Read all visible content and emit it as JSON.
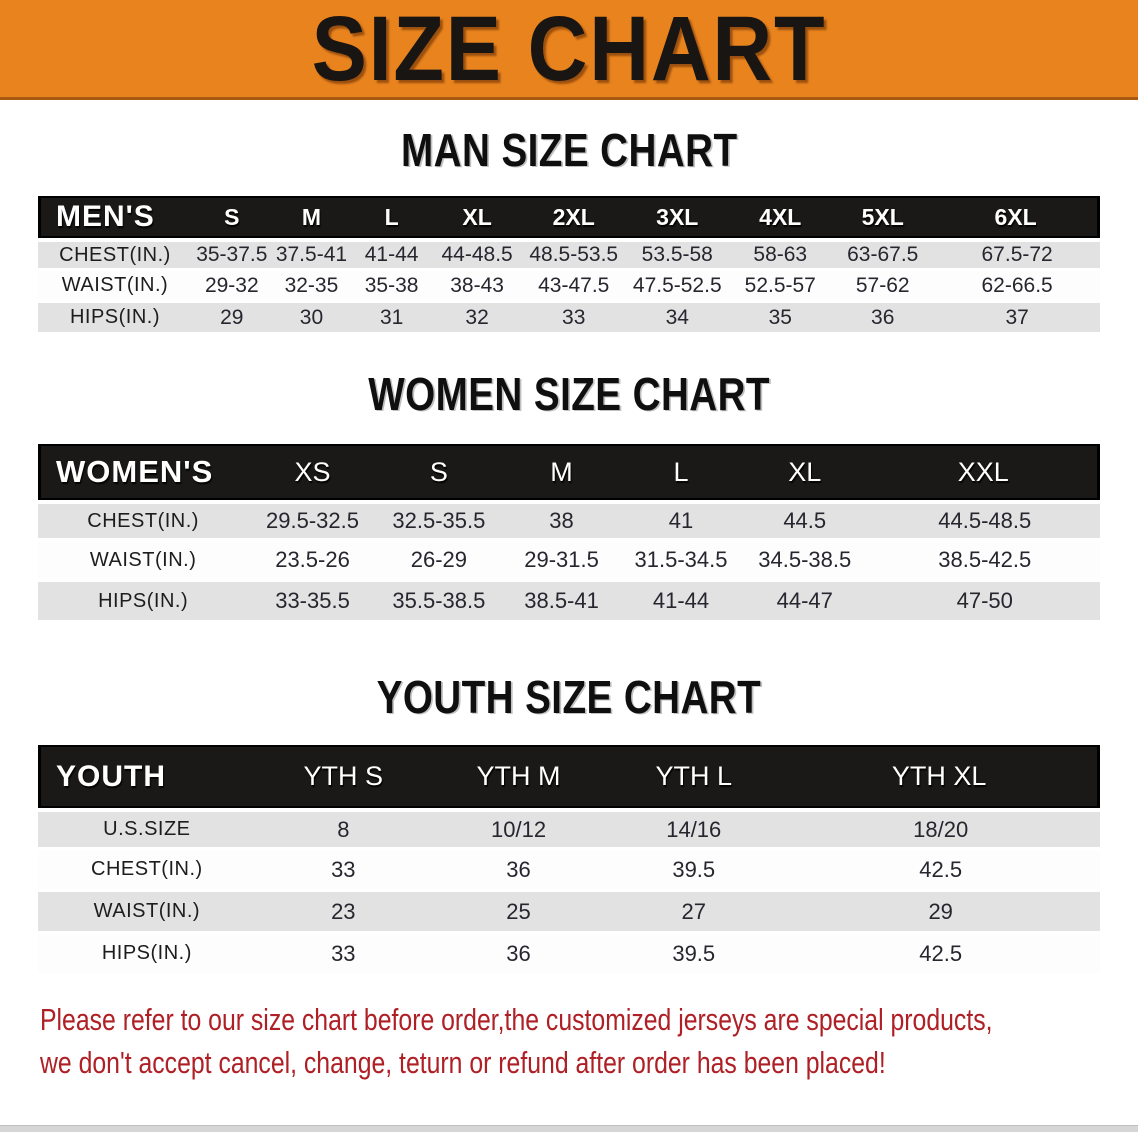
{
  "banner": {
    "title": "SIZE CHART",
    "bg_color": "#E8831E"
  },
  "sections": {
    "men": {
      "title": "MAN SIZE CHART",
      "group_label": "MEN'S",
      "columns": [
        "S",
        "M",
        "L",
        "XL",
        "2XL",
        "3XL",
        "4XL",
        "5XL",
        "6XL"
      ],
      "rows": [
        {
          "label": "CHEST(IN.)",
          "values": [
            "35-37.5",
            "37.5-41",
            "41-44",
            "44-48.5",
            "48.5-53.5",
            "53.5-58",
            "58-63",
            "63-67.5",
            "67.5-72"
          ]
        },
        {
          "label": "WAIST(IN.)",
          "values": [
            "29-32",
            "32-35",
            "35-38",
            "38-43",
            "43-47.5",
            "47.5-52.5",
            "52.5-57",
            "57-62",
            "62-66.5"
          ]
        },
        {
          "label": "HIPS(IN.)",
          "values": [
            "29",
            "30",
            "31",
            "32",
            "33",
            "34",
            "35",
            "36",
            "37"
          ]
        }
      ]
    },
    "women": {
      "title": "WOMEN SIZE CHART",
      "group_label": "WOMEN'S",
      "columns": [
        "XS",
        "S",
        "M",
        "L",
        "XL",
        "XXL"
      ],
      "rows": [
        {
          "label": "CHEST(IN.)",
          "values": [
            "29.5-32.5",
            "32.5-35.5",
            "38",
            "41",
            "44.5",
            "44.5-48.5"
          ]
        },
        {
          "label": "WAIST(IN.)",
          "values": [
            "23.5-26",
            "26-29",
            "29-31.5",
            "31.5-34.5",
            "34.5-38.5",
            "38.5-42.5"
          ]
        },
        {
          "label": "HIPS(IN.)",
          "values": [
            "33-35.5",
            "35.5-38.5",
            "38.5-41",
            "41-44",
            "44-47",
            "47-50"
          ]
        }
      ]
    },
    "youth": {
      "title": "YOUTH SIZE CHART",
      "group_label": "YOUTH",
      "columns": [
        "YTH S",
        "YTH M",
        "YTH L",
        "YTH XL"
      ],
      "rows": [
        {
          "label": "U.S.SIZE",
          "values": [
            "8",
            "10/12",
            "14/16",
            "18/20"
          ]
        },
        {
          "label": "CHEST(IN.)",
          "values": [
            "33",
            "36",
            "39.5",
            "42.5"
          ]
        },
        {
          "label": "WAIST(IN.)",
          "values": [
            "23",
            "25",
            "27",
            "29"
          ]
        },
        {
          "label": "HIPS(IN.)",
          "values": [
            "33",
            "36",
            "39.5",
            "42.5"
          ]
        }
      ]
    }
  },
  "footer": {
    "line1": "Please refer to our size chart before order,the customized jerseys are special products,",
    "line2": "we don't accept cancel, change, teturn or refund after order has been placed!"
  }
}
